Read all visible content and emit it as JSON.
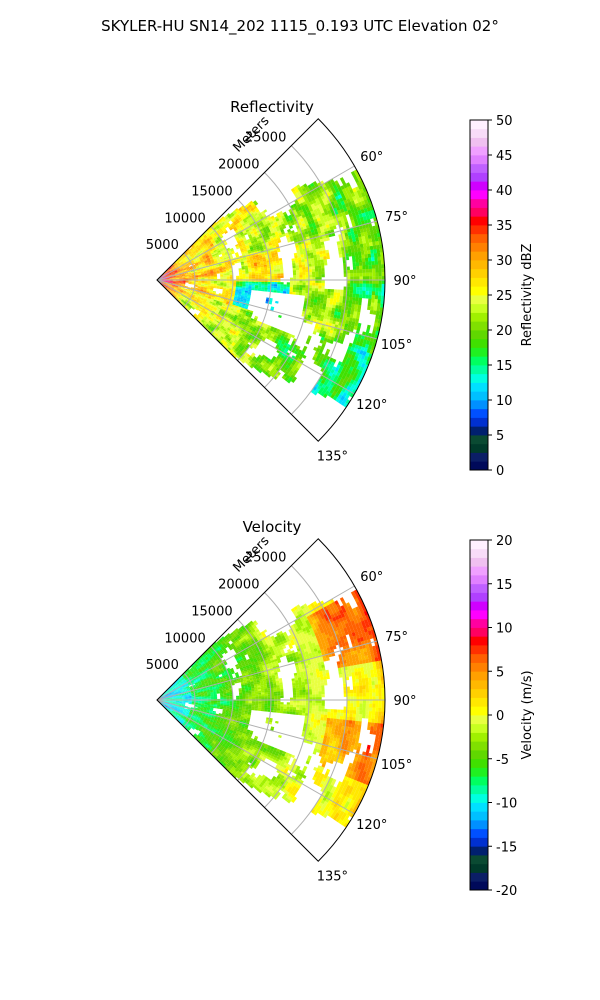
{
  "title": "SKYLER-HU  SN14_202  1115_0.193 UTC Elevation 02°",
  "chart_data": [
    {
      "type": "heatmap",
      "projection": "polar-sector",
      "title": "Reflectivity",
      "range_label": "Meters",
      "range_ticks": [
        5000,
        10000,
        15000,
        20000,
        25000
      ],
      "range_tick_labels": [
        "5000",
        "10000",
        "15000",
        "20000",
        "25000"
      ],
      "azimuth_ticks_deg": [
        60,
        75,
        90,
        105,
        120,
        135
      ],
      "azimuth_tick_labels": [
        "60°",
        "75°",
        "90°",
        "105°",
        "120°",
        "135°"
      ],
      "azimuth_range_deg": [
        45,
        135
      ],
      "range_max": 30000,
      "grid": true,
      "colorbar": {
        "label": "Reflectivity dBZ",
        "min": 0,
        "max": 50,
        "ticks": [
          0,
          5,
          10,
          15,
          20,
          25,
          30,
          35,
          40,
          45,
          50
        ],
        "tick_labels": [
          "0",
          "5",
          "10",
          "15",
          "20",
          "25",
          "30",
          "35",
          "40",
          "45",
          "50"
        ],
        "colors": [
          "#000a5a",
          "#0b1e66",
          "#003a2a",
          "#0a4a32",
          "#00206e",
          "#0030d0",
          "#0050ff",
          "#0090ff",
          "#00c0ff",
          "#00e0ff",
          "#00ffe0",
          "#00ffa0",
          "#00ff60",
          "#20f020",
          "#40e000",
          "#60d800",
          "#80e000",
          "#a0f000",
          "#c8ff20",
          "#e8ff40",
          "#ffff00",
          "#ffe800",
          "#ffd000",
          "#ffb800",
          "#ffa000",
          "#ff8000",
          "#ff6000",
          "#ff3000",
          "#ff0000",
          "#ff0060",
          "#ff00a0",
          "#ff00ff",
          "#d000ff",
          "#b040ff",
          "#c060ff",
          "#e080ff",
          "#f0a0ff",
          "#f0c0f0",
          "#f8dcf8",
          "#fff0ff"
        ]
      }
    },
    {
      "type": "heatmap",
      "projection": "polar-sector",
      "title": "Velocity",
      "range_label": "Meters",
      "range_ticks": [
        5000,
        10000,
        15000,
        20000,
        25000
      ],
      "range_tick_labels": [
        "5000",
        "10000",
        "15000",
        "20000",
        "25000"
      ],
      "azimuth_ticks_deg": [
        60,
        75,
        90,
        105,
        120,
        135
      ],
      "azimuth_tick_labels": [
        "60°",
        "75°",
        "90°",
        "105°",
        "120°",
        "135°"
      ],
      "azimuth_range_deg": [
        45,
        135
      ],
      "range_max": 30000,
      "grid": true,
      "colorbar": {
        "label": "Velocity (m/s)",
        "min": -20,
        "max": 20,
        "ticks": [
          -20,
          -15,
          -10,
          -5,
          0,
          5,
          10,
          15,
          20
        ],
        "tick_labels": [
          "-20",
          "-15",
          "-10",
          "-5",
          "0",
          "5",
          "10",
          "15",
          "20"
        ],
        "colors": [
          "#000a5a",
          "#0b1e66",
          "#003a2a",
          "#0a4a32",
          "#00206e",
          "#0030d0",
          "#0050ff",
          "#0090ff",
          "#00c0ff",
          "#00e0ff",
          "#00ffe0",
          "#00ffa0",
          "#00ff60",
          "#20f020",
          "#40e000",
          "#60d800",
          "#80e000",
          "#a0f000",
          "#c8ff20",
          "#e8ff40",
          "#ffff00",
          "#ffe800",
          "#ffd000",
          "#ffb800",
          "#ffa000",
          "#ff8000",
          "#ff6000",
          "#ff3000",
          "#ff0000",
          "#ff0060",
          "#ff00a0",
          "#ff00ff",
          "#d000ff",
          "#b040ff",
          "#c060ff",
          "#e080ff",
          "#f0a0ff",
          "#f0c0f0",
          "#f8dcf8",
          "#fff0ff"
        ]
      }
    }
  ]
}
